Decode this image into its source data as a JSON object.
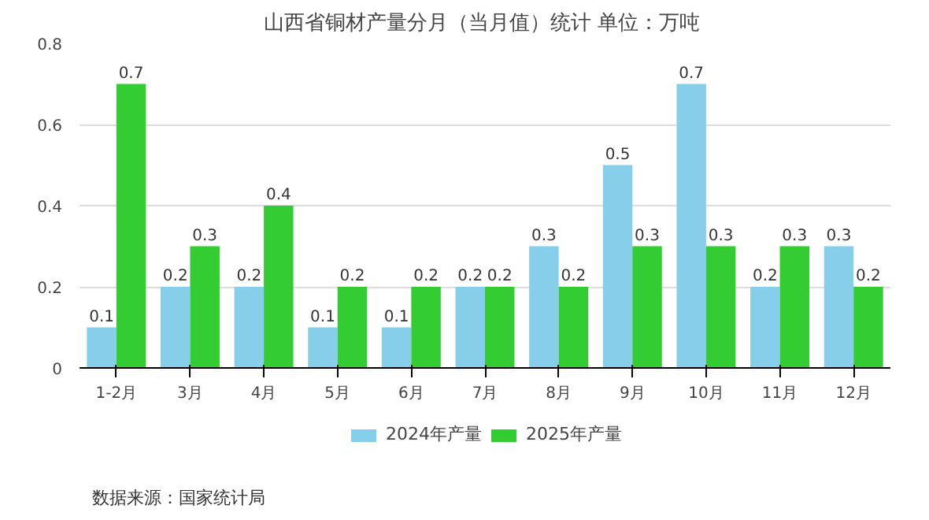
{
  "chart_data": {
    "type": "bar",
    "title": "山西省铜材产量分月（当月值）统计  单位：万吨",
    "categories": [
      "1-2月",
      "3月",
      "4月",
      "5月",
      "6月",
      "7月",
      "8月",
      "9月",
      "10月",
      "11月",
      "12月"
    ],
    "series": [
      {
        "name": "2024年产量",
        "color": "#87ceeb",
        "values": [
          0.1,
          0.2,
          0.2,
          0.1,
          0.1,
          0.2,
          0.3,
          0.5,
          0.7,
          0.2,
          0.3
        ]
      },
      {
        "name": "2025年产量",
        "color": "#33cc33",
        "values": [
          0.7,
          0.3,
          0.4,
          0.2,
          0.2,
          0.2,
          0.2,
          0.3,
          0.3,
          0.3,
          0.2
        ]
      }
    ],
    "ylim": [
      0,
      0.8
    ],
    "yticks": [
      0,
      0.2,
      0.4,
      0.6,
      0.8
    ],
    "grid": "y",
    "legend": "bottom",
    "data_labels": true,
    "annotations": [
      "数据来源：国家统计局"
    ]
  }
}
